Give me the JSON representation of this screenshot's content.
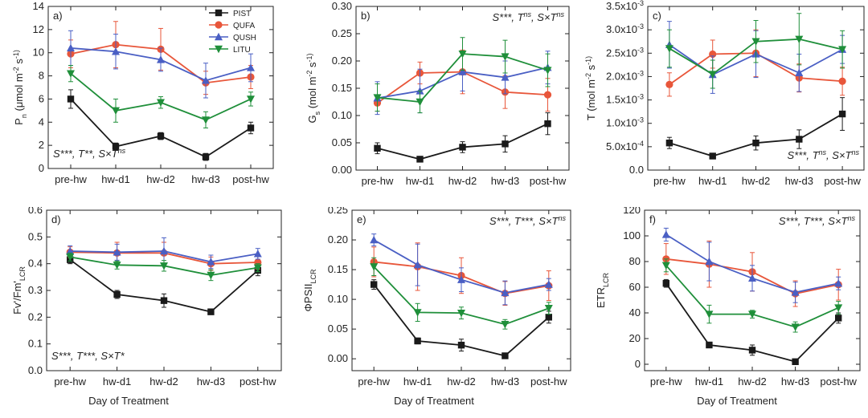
{
  "figure": {
    "xlabel_common": "Day of Treatment",
    "series_colors": {
      "PIST": "#1a1a1a",
      "QUFA": "#e8563a",
      "QUSH": "#4a5fc4",
      "LITU": "#1f8f3a"
    },
    "legend": [
      "PIST",
      "QUFA",
      "QUSH",
      "LITU"
    ]
  },
  "chart_data": [
    {
      "type": "line",
      "panel": "a)",
      "ylabel": "P_n (μmol m^-2 s^-1)",
      "ylim": [
        0,
        14
      ],
      "yticks": [
        0,
        2,
        4,
        6,
        8,
        10,
        12,
        14
      ],
      "ytick_labels": [
        "0",
        "2",
        "4",
        "6",
        "8",
        "10",
        "12",
        "14"
      ],
      "categories": [
        "pre-hw",
        "hw-d1",
        "hw-d2",
        "hw-d3",
        "post-hw"
      ],
      "annotation": "S***, T**, S×T^ns",
      "annotation_pos": "bottom-left",
      "legend": "top-right",
      "series": [
        {
          "name": "PIST",
          "values": [
            6.0,
            1.9,
            2.8,
            1.0,
            3.5
          ],
          "err": [
            0.8,
            0.3,
            0.3,
            0.3,
            0.5
          ]
        },
        {
          "name": "QUFA",
          "values": [
            9.9,
            10.7,
            10.3,
            7.4,
            7.9
          ],
          "err": [
            1.2,
            2.0,
            1.8,
            1.0,
            1.0
          ]
        },
        {
          "name": "QUSH",
          "values": [
            10.4,
            10.1,
            9.4,
            7.6,
            8.7
          ],
          "err": [
            1.5,
            1.5,
            1.0,
            1.5,
            1.2
          ]
        },
        {
          "name": "LITU",
          "values": [
            8.2,
            5.0,
            5.7,
            4.2,
            6.0
          ],
          "err": [
            0.7,
            1.0,
            0.5,
            0.7,
            0.6
          ]
        }
      ]
    },
    {
      "type": "line",
      "panel": "b)",
      "ylabel": "G_s (mol m^-2 s^-1)",
      "ylim": [
        0,
        0.3
      ],
      "yticks": [
        0,
        0.05,
        0.1,
        0.15,
        0.2,
        0.25,
        0.3
      ],
      "ytick_labels": [
        "0.00",
        "0.05",
        "0.10",
        "0.15",
        "0.20",
        "0.25",
        "0.30"
      ],
      "categories": [
        "pre-hw",
        "hw-d1",
        "hw-d2",
        "hw-d3",
        "post-hw"
      ],
      "annotation": "S***, T^ns, S×T^ns",
      "annotation_pos": "top-right",
      "series": [
        {
          "name": "PIST",
          "values": [
            0.04,
            0.02,
            0.042,
            0.048,
            0.085
          ],
          "err": [
            0.01,
            0.004,
            0.01,
            0.015,
            0.02
          ]
        },
        {
          "name": "QUFA",
          "values": [
            0.123,
            0.178,
            0.18,
            0.143,
            0.138
          ],
          "err": [
            0.015,
            0.02,
            0.04,
            0.03,
            0.03
          ]
        },
        {
          "name": "QUSH",
          "values": [
            0.132,
            0.145,
            0.18,
            0.17,
            0.188
          ],
          "err": [
            0.03,
            0.04,
            0.035,
            0.03,
            0.03
          ]
        },
        {
          "name": "LITU",
          "values": [
            0.133,
            0.125,
            0.213,
            0.208,
            0.183
          ],
          "err": [
            0.025,
            0.02,
            0.03,
            0.03,
            0.03
          ]
        }
      ]
    },
    {
      "type": "line",
      "panel": "c)",
      "ylabel": "T (mol m^-2 s^-1)",
      "ylim": [
        0,
        0.0035
      ],
      "yticks": [
        0,
        0.0005,
        0.001,
        0.0015,
        0.002,
        0.0025,
        0.003,
        0.0035
      ],
      "ytick_labels": [
        "0.0",
        "5.0x10^-4",
        "1.0x10^-3",
        "1.5x10^-3",
        "2.0x10^-3",
        "2.5x10^-3",
        "3.0x10^-3",
        "3.5x10^-3"
      ],
      "categories": [
        "pre-hw",
        "hw-d1",
        "hw-d2",
        "hw-d3",
        "post-hw"
      ],
      "annotation": "S***, T^ns, S×T^ns",
      "annotation_pos": "bottom-right",
      "series": [
        {
          "name": "PIST",
          "values": [
            0.00058,
            0.0003,
            0.00058,
            0.00066,
            0.0012
          ],
          "err": [
            0.00012,
            4e-05,
            0.00015,
            0.0002,
            0.00035
          ]
        },
        {
          "name": "QUFA",
          "values": [
            0.00183,
            0.00248,
            0.0025,
            0.00197,
            0.0019
          ],
          "err": [
            0.00025,
            0.0003,
            0.0005,
            0.0003,
            0.0003
          ]
        },
        {
          "name": "QUSH",
          "values": [
            0.00268,
            0.00204,
            0.00248,
            0.00208,
            0.00258
          ],
          "err": [
            0.0005,
            0.0004,
            0.0005,
            0.0004,
            0.0003
          ]
        },
        {
          "name": "LITU",
          "values": [
            0.0026,
            0.00205,
            0.00275,
            0.0028,
            0.00258
          ],
          "err": [
            0.0004,
            0.0003,
            0.00045,
            0.00055,
            0.0004
          ]
        }
      ]
    },
    {
      "type": "line",
      "panel": "d)",
      "ylabel": "Fv'/Fm'_LCR",
      "ylim": [
        0,
        0.6
      ],
      "yticks": [
        0,
        0.1,
        0.2,
        0.3,
        0.4,
        0.5,
        0.6
      ],
      "ytick_labels": [
        "0.0",
        "0.1",
        "0.2",
        "0.3",
        "0.4",
        "0.5",
        "0.6"
      ],
      "categories": [
        "pre-hw",
        "hw-d1",
        "hw-d2",
        "hw-d3",
        "post-hw"
      ],
      "annotation": "S***, T***, S×T*",
      "annotation_pos": "bottom-left",
      "series": [
        {
          "name": "PIST",
          "values": [
            0.415,
            0.285,
            0.262,
            0.22,
            0.375
          ],
          "err": [
            0.015,
            0.015,
            0.025,
            0.008,
            0.02
          ]
        },
        {
          "name": "QUFA",
          "values": [
            0.443,
            0.44,
            0.44,
            0.4,
            0.405
          ],
          "err": [
            0.02,
            0.04,
            0.04,
            0.025,
            0.025
          ]
        },
        {
          "name": "QUSH",
          "values": [
            0.447,
            0.443,
            0.447,
            0.407,
            0.437
          ],
          "err": [
            0.02,
            0.03,
            0.05,
            0.025,
            0.02
          ]
        },
        {
          "name": "LITU",
          "values": [
            0.425,
            0.395,
            0.392,
            0.357,
            0.385
          ],
          "err": [
            0.015,
            0.015,
            0.02,
            0.02,
            0.015
          ]
        }
      ]
    },
    {
      "type": "line",
      "panel": "e)",
      "ylabel": "ΦPSII_LCR",
      "ylim": [
        -0.02,
        0.25
      ],
      "yticks": [
        0,
        0.05,
        0.1,
        0.15,
        0.2,
        0.25
      ],
      "ytick_labels": [
        "0.00",
        "0.05",
        "0.10",
        "0.15",
        "0.20",
        "0.25"
      ],
      "categories": [
        "pre-hw",
        "hw-d1",
        "hw-d2",
        "hw-d3",
        "post-hw"
      ],
      "annotation": "S***, T***, S×T^ns",
      "annotation_pos": "top-right",
      "series": [
        {
          "name": "PIST",
          "values": [
            0.125,
            0.03,
            0.023,
            0.005,
            0.07
          ],
          "err": [
            0.008,
            0.005,
            0.01,
            0.003,
            0.01
          ]
        },
        {
          "name": "QUFA",
          "values": [
            0.163,
            0.155,
            0.14,
            0.11,
            0.123
          ],
          "err": [
            0.025,
            0.04,
            0.03,
            0.02,
            0.025
          ]
        },
        {
          "name": "QUSH",
          "values": [
            0.2,
            0.158,
            0.133,
            0.111,
            0.125
          ],
          "err": [
            0.01,
            0.035,
            0.02,
            0.02,
            0.01
          ]
        },
        {
          "name": "LITU",
          "values": [
            0.155,
            0.078,
            0.077,
            0.058,
            0.085
          ],
          "err": [
            0.015,
            0.015,
            0.01,
            0.008,
            0.01
          ]
        }
      ]
    },
    {
      "type": "line",
      "panel": "f)",
      "ylabel": "ETR_LCR",
      "ylim": [
        -5,
        120
      ],
      "yticks": [
        0,
        20,
        40,
        60,
        80,
        100,
        120
      ],
      "ytick_labels": [
        "0",
        "20",
        "40",
        "60",
        "80",
        "100",
        "120"
      ],
      "categories": [
        "pre-hw",
        "hw-d1",
        "hw-d2",
        "hw-d3",
        "post-hw"
      ],
      "annotation": "S***, T***, S×T^ns",
      "annotation_pos": "top-right",
      "series": [
        {
          "name": "PIST",
          "values": [
            63,
            15,
            11,
            2,
            36
          ],
          "err": [
            3,
            2,
            4,
            2,
            4
          ]
        },
        {
          "name": "QUFA",
          "values": [
            82,
            78,
            72,
            55,
            62
          ],
          "err": [
            12,
            18,
            15,
            10,
            12
          ]
        },
        {
          "name": "QUSH",
          "values": [
            101,
            80,
            67,
            56,
            63
          ],
          "err": [
            5,
            15,
            10,
            8,
            5
          ]
        },
        {
          "name": "LITU",
          "values": [
            77,
            39,
            39,
            29,
            44
          ],
          "err": [
            5,
            7,
            3,
            4,
            5
          ]
        }
      ]
    }
  ]
}
